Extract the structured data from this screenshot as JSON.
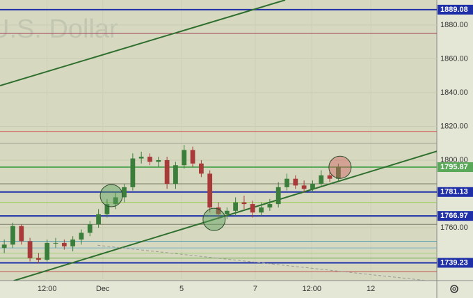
{
  "chart_data": {
    "type": "candlestick",
    "watermark": "U.S. Dollar",
    "xlim": [
      0,
      51
    ],
    "ylim": [
      1728.7,
      1894.8
    ],
    "xticks": [
      {
        "value": 5.5,
        "label": "12:00"
      },
      {
        "value": 12,
        "label": "Dec"
      },
      {
        "value": 21.2,
        "label": "5"
      },
      {
        "value": 29.8,
        "label": "7"
      },
      {
        "value": 36.4,
        "label": "12:00"
      },
      {
        "value": 43.3,
        "label": "12"
      }
    ],
    "yticks": [
      {
        "value": 1760,
        "label": "1760.00"
      },
      {
        "value": 1780,
        "label": "1780.00"
      },
      {
        "value": 1800,
        "label": "1800.00"
      },
      {
        "value": 1820,
        "label": "1820.00"
      },
      {
        "value": 1840,
        "label": "1840.00"
      },
      {
        "value": 1860,
        "label": "1860.00"
      },
      {
        "value": 1880,
        "label": "1880.00"
      }
    ],
    "grid": true,
    "up_color": "#3b7d3b",
    "down_color": "#a83a3a",
    "open": [
      1748,
      1750,
      1761,
      1752,
      1742,
      1741,
      1751,
      1751,
      1749,
      1753,
      1757,
      1762,
      1768,
      1774,
      1778,
      1784,
      1801,
      1802,
      1799,
      1800,
      1786,
      1797,
      1806,
      1798,
      1792,
      1772,
      1768,
      1770,
      1775,
      1774,
      1769,
      1772,
      1774,
      1784,
      1789,
      1785,
      1783,
      1786,
      1791,
      1789
    ],
    "high": [
      1753,
      1763,
      1762,
      1754,
      1745,
      1753,
      1754,
      1753,
      1755,
      1759,
      1764,
      1771,
      1777,
      1781,
      1786,
      1804,
      1805,
      1804,
      1802,
      1802,
      1799,
      1809,
      1808,
      1800,
      1794,
      1775,
      1772,
      1778,
      1779,
      1776,
      1775,
      1777,
      1787,
      1792,
      1791,
      1788,
      1788,
      1794,
      1793,
      1798
    ],
    "low": [
      1745,
      1748,
      1750,
      1740,
      1739,
      1740,
      1748,
      1747,
      1746,
      1750,
      1755,
      1760,
      1766,
      1771,
      1775,
      1782,
      1798,
      1797,
      1796,
      1783,
      1783,
      1795,
      1796,
      1790,
      1769,
      1765,
      1765,
      1767,
      1771,
      1766,
      1767,
      1770,
      1772,
      1782,
      1783,
      1781,
      1781,
      1784,
      1787,
      1787
    ],
    "close": [
      1750,
      1761,
      1752,
      1742,
      1741,
      1751,
      1751,
      1749,
      1753,
      1757,
      1762,
      1768,
      1774,
      1778,
      1784,
      1801,
      1802,
      1799,
      1800,
      1786,
      1797,
      1806,
      1798,
      1792,
      1772,
      1768,
      1770,
      1775,
      1774,
      1769,
      1772,
      1774,
      1784,
      1789,
      1785,
      1783,
      1786,
      1791,
      1789,
      1796
    ],
    "levels": [
      {
        "value": 1875,
        "color": "#a0405a"
      },
      {
        "value": 1817,
        "color": "#d05050"
      },
      {
        "value": 1810,
        "color": "#9a9a8a"
      },
      {
        "value": 1786,
        "color": "#7a7a6a"
      },
      {
        "value": 1775,
        "color": "#9ccc5a"
      },
      {
        "value": 1762,
        "color": "#7a7a6a"
      },
      {
        "value": 1752,
        "color": "#5aa0b0"
      },
      {
        "value": 1748,
        "color": "#7ab0c0"
      },
      {
        "value": 1745,
        "color": "#a0d070"
      },
      {
        "value": 1742,
        "color": "#6ab04a"
      },
      {
        "value": 1734,
        "color": "#c05050"
      }
    ],
    "price_labels": [
      {
        "value": 1889.08,
        "color": "#1e2fa8"
      },
      {
        "value": 1795.87,
        "color": "#5aa85a"
      },
      {
        "value": 1781.13,
        "color": "#1e2fa8"
      },
      {
        "value": 1766.97,
        "color": "#1e2fa8"
      },
      {
        "value": 1739.23,
        "color": "#1e2fa8"
      }
    ],
    "trend_lines": [
      {
        "x": [
          0,
          33.3
        ],
        "y": [
          1844.1,
          1894.8
        ],
        "color": "#2e6e2e"
      },
      {
        "x": [
          1.6,
          51
        ],
        "y": [
          1728.6,
          1805.3
        ],
        "color": "#2e6e2e"
      },
      {
        "x": [
          11.4,
          50
        ],
        "y": [
          1749.6,
          1728.6
        ],
        "color": "#9a9a9a",
        "dashed": true
      }
    ],
    "markers": [
      {
        "x": 13,
        "y": 1779,
        "color": "#5aa05a"
      },
      {
        "x": 25,
        "y": 1764.9,
        "color": "#5aa05a"
      },
      {
        "x": 39.7,
        "y": 1795.8,
        "color": "#d06060"
      }
    ]
  }
}
